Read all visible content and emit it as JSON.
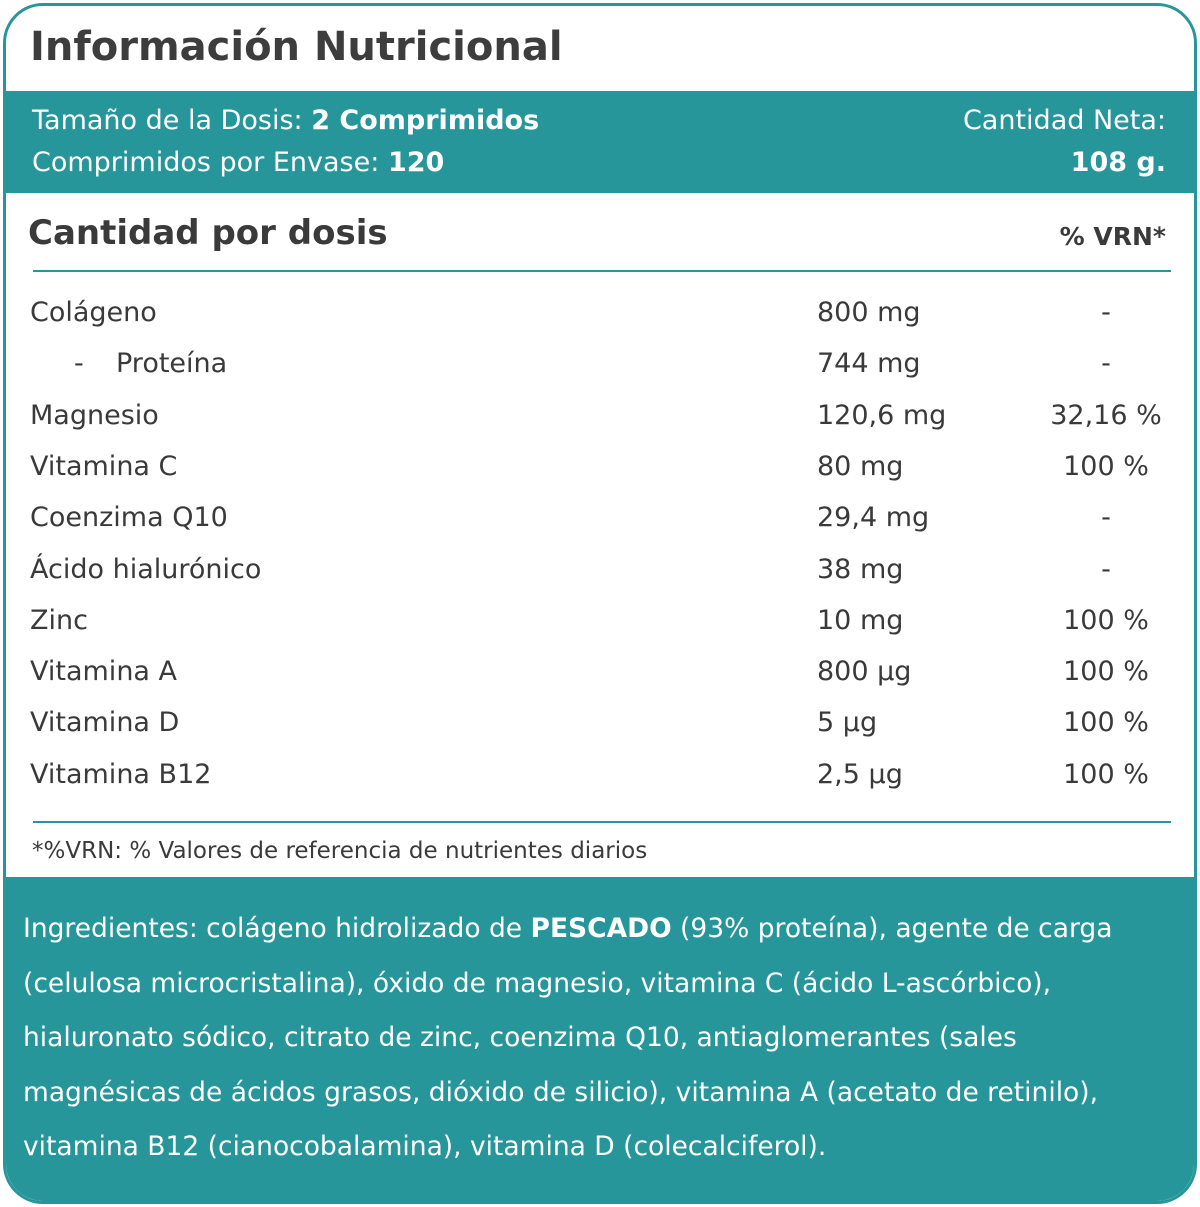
{
  "title": "Información Nutricional",
  "dose": {
    "size_label": "Tamaño de la Dosis:",
    "size_value": "2 Comprimidos",
    "per_pack_label": "Comprimidos por Envase:",
    "per_pack_value": "120",
    "net_label": "Cantidad Neta:",
    "net_value": "108 g."
  },
  "table": {
    "header": "Cantidad por dosis",
    "vrn_header": "% VRN*",
    "rows": [
      {
        "name": "Colágeno",
        "amount": "800 mg",
        "vrn": "-"
      },
      {
        "marker": "-",
        "name": "Proteína",
        "amount": "744 mg",
        "vrn": "-"
      },
      {
        "name": "Magnesio",
        "amount": "120,6 mg",
        "vrn": "32,16 %"
      },
      {
        "name": "Vitamina C",
        "amount": "80 mg",
        "vrn": "100 %"
      },
      {
        "name": "Coenzima Q10",
        "amount": "29,4 mg",
        "vrn": "-"
      },
      {
        "name": "Ácido hialurónico",
        "amount": "38 mg",
        "vrn": "-"
      },
      {
        "name": "Zinc",
        "amount": "10 mg",
        "vrn": "100 %"
      },
      {
        "name": "Vitamina A",
        "amount": "800 µg",
        "vrn": "100 %"
      },
      {
        "name": "Vitamina D",
        "amount": "5 µg",
        "vrn": "100 %"
      },
      {
        "name": "Vitamina B12",
        "amount": "2,5 µg",
        "vrn": "100 %"
      }
    ],
    "footnote": "*%VRN: % Valores de referencia de nutrientes diarios"
  },
  "ingredients": {
    "first_line": {
      "before": "Ingredientes: colágeno hidrolizado de ",
      "bold": "PESCADO",
      "after": " (93% proteína), agente de carga"
    },
    "lines": [
      "(celulosa microcristalina), óxido de magnesio, vitamina C (ácido L-ascórbico),",
      "hialuronato sódico, citrato de zinc, coenzima Q10, antiaglomerantes (sales",
      "magnésicas de ácidos grasos, dióxido de silicio), vitamina A (acetato de retinilo),",
      "vitamina B12 (cianocobalamina), vitamina D (colecalciferol)."
    ]
  }
}
